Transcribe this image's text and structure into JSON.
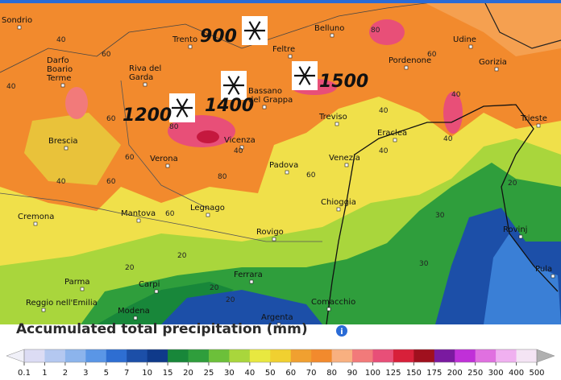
{
  "legend": {
    "title": "Accumulated total precipitation (mm)",
    "info_icon": "i",
    "ticks": [
      0.1,
      1,
      2,
      3,
      5,
      7,
      10,
      15,
      20,
      25,
      30,
      40,
      50,
      60,
      70,
      80,
      90,
      100,
      125,
      150,
      175,
      200,
      250,
      300,
      400,
      500
    ],
    "colors": [
      "#dcdcf4",
      "#b4c8f0",
      "#8cb4ec",
      "#5a96e6",
      "#2e6ed2",
      "#1c4fa8",
      "#0f3a8a",
      "#18873a",
      "#2f9e3c",
      "#6cc03a",
      "#a9d63c",
      "#e8e840",
      "#f0d030",
      "#f0a030",
      "#f28a2d",
      "#f8b080",
      "#f27a7a",
      "#e84f78",
      "#d8203a",
      "#a0101e",
      "#7a1aa0",
      "#c030d8",
      "#e070e0",
      "#f0b0f0",
      "#f4e4f4"
    ],
    "end_colors": [
      "#f0f0f8",
      "#b0b0b0"
    ]
  },
  "cities": [
    [
      "Sondrio"
    ],
    [
      "Darfo",
      "Boario",
      "Terme"
    ],
    [
      "Trento"
    ],
    [
      "Riva del",
      "Garda"
    ],
    [
      "Belluno"
    ],
    [
      "Feltre"
    ],
    [
      "Udine"
    ],
    [
      "Pordenone"
    ],
    [
      "Gorizia"
    ],
    [
      "Bassano",
      "del Grappa"
    ],
    [
      "Treviso"
    ],
    [
      "Eraclea"
    ],
    [
      "Trieste"
    ],
    [
      "Brescia"
    ],
    [
      "Vicenza"
    ],
    [
      "Verona"
    ],
    [
      "Padova"
    ],
    [
      "Venezia"
    ],
    [
      "Legnago"
    ],
    [
      "Cremona"
    ],
    [
      "Mantova"
    ],
    [
      "Chioggia"
    ],
    [
      "Rovigo"
    ],
    [
      "Rovinj"
    ],
    [
      "Parma"
    ],
    [
      "Carpi"
    ],
    [
      "Ferrara"
    ],
    [
      "Pula"
    ],
    [
      "Reggio nell'Emilia"
    ],
    [
      "Modena"
    ],
    [
      "Comacchio"
    ],
    [
      "Argenta"
    ]
  ],
  "snow_levels": [
    "900",
    "1400",
    "1500",
    "1200"
  ],
  "contour_labels": [
    "40",
    "60",
    "40",
    "60",
    "80",
    "60",
    "40",
    "60",
    "80",
    "60",
    "40",
    "60",
    "40",
    "40",
    "40",
    "40",
    "30",
    "20",
    "20",
    "20",
    "20",
    "30",
    "20",
    "60",
    "80"
  ]
}
